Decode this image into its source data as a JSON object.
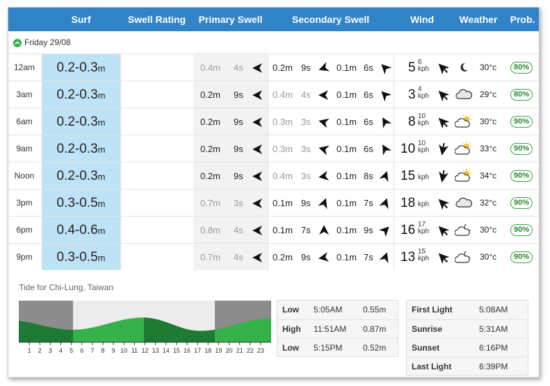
{
  "header": {
    "surf": "Surf",
    "swell_rating": "Swell Rating",
    "primary_swell": "Primary Swell",
    "secondary_swell": "Secondary Swell",
    "wind": "Wind",
    "weather": "Weather",
    "prob": "Prob."
  },
  "day": {
    "label": "Friday 29/08"
  },
  "units": {
    "metre": "m",
    "second": "s",
    "kph": "kph"
  },
  "rows": [
    {
      "time": "12am",
      "surf": "0.2-0.3",
      "pri_h": "0.4",
      "pri_p": "4",
      "pri_dim": true,
      "sec1_h": "0.2",
      "sec1_p": "9",
      "sec1_dim": false,
      "sec2_h": "0.1",
      "sec2_p": "6",
      "sec2_dim": false,
      "wind": "5",
      "gust": "6",
      "temp": "30°c",
      "prob": "80%",
      "weather_icon": "moon-icon"
    },
    {
      "time": "3am",
      "surf": "0.2-0.3",
      "pri_h": "0.2",
      "pri_p": "9",
      "pri_dim": false,
      "sec1_h": "0.4",
      "sec1_p": "4",
      "sec1_dim": true,
      "sec2_h": "0.1",
      "sec2_p": "6",
      "sec2_dim": false,
      "wind": "3",
      "gust": "4",
      "temp": "29°c",
      "prob": "80%",
      "weather_icon": "cloud-icon"
    },
    {
      "time": "6am",
      "surf": "0.2-0.3",
      "pri_h": "0.2",
      "pri_p": "9",
      "pri_dim": false,
      "sec1_h": "0.3",
      "sec1_p": "3",
      "sec1_dim": true,
      "sec2_h": "0.1",
      "sec2_p": "6",
      "sec2_dim": false,
      "wind": "8",
      "gust": "10",
      "temp": "30°c",
      "prob": "90%",
      "weather_icon": "sun-cloud-icon"
    },
    {
      "time": "9am",
      "surf": "0.2-0.3",
      "pri_h": "0.2",
      "pri_p": "9",
      "pri_dim": false,
      "sec1_h": "0.3",
      "sec1_p": "3",
      "sec1_dim": true,
      "sec2_h": "0.1",
      "sec2_p": "6",
      "sec2_dim": false,
      "wind": "10",
      "gust": "10",
      "temp": "33°c",
      "prob": "90%",
      "weather_icon": "sun-cloud-icon"
    },
    {
      "time": "Noon",
      "surf": "0.2-0.3",
      "pri_h": "0.2",
      "pri_p": "9",
      "pri_dim": false,
      "sec1_h": "0.4",
      "sec1_p": "3",
      "sec1_dim": true,
      "sec2_h": "0.1",
      "sec2_p": "8",
      "sec2_dim": false,
      "wind": "15",
      "gust": "",
      "temp": "34°c",
      "prob": "90%",
      "weather_icon": "sun-cloud-icon"
    },
    {
      "time": "3pm",
      "surf": "0.3-0.5",
      "pri_h": "0.7",
      "pri_p": "3",
      "pri_dim": true,
      "sec1_h": "0.1",
      "sec1_p": "9",
      "sec1_dim": false,
      "sec2_h": "0.1",
      "sec2_p": "7",
      "sec2_dim": false,
      "wind": "18",
      "gust": "",
      "temp": "32°c",
      "prob": "90%",
      "weather_icon": "cloud-icon"
    },
    {
      "time": "6pm",
      "surf": "0.4-0.6",
      "pri_h": "0.8",
      "pri_p": "4",
      "pri_dim": true,
      "sec1_h": "0.1",
      "sec1_p": "7",
      "sec1_dim": false,
      "sec2_h": "0.1",
      "sec2_p": "9",
      "sec2_dim": false,
      "wind": "16",
      "gust": "17",
      "temp": "30°c",
      "prob": "90%",
      "weather_icon": "moon-cloud-icon"
    },
    {
      "time": "9pm",
      "surf": "0.3-0.5",
      "pri_h": "0.7",
      "pri_p": "4",
      "pri_dim": true,
      "sec1_h": "0.2",
      "sec1_p": "9",
      "sec1_dim": false,
      "sec2_h": "0.1",
      "sec2_p": "7",
      "sec2_dim": false,
      "wind": "13",
      "gust": "15",
      "temp": "30°c",
      "prob": "90%",
      "weather_icon": "moon-cloud-icon"
    }
  ],
  "tide": {
    "title": "Tide for Chi-Lung, Taiwan",
    "hours": [
      "1",
      "2",
      "3",
      "4",
      "5",
      "6",
      "7",
      "8",
      "9",
      "10",
      "11",
      "12",
      "13",
      "14",
      "15",
      "16",
      "17",
      "18",
      "19",
      "20",
      "21",
      "22",
      "23"
    ],
    "events": [
      {
        "type": "Low",
        "time": "5:05AM",
        "height": "0.55m"
      },
      {
        "type": "High",
        "time": "11:51AM",
        "height": "0.87m"
      },
      {
        "type": "Low",
        "time": "5:15PM",
        "height": "0.52m"
      }
    ]
  },
  "sun": [
    {
      "label": "First Light",
      "time": "5:08AM"
    },
    {
      "label": "Sunrise",
      "time": "5:31AM"
    },
    {
      "label": "Sunset",
      "time": "6:16PM"
    },
    {
      "label": "Last Light",
      "time": "6:39PM"
    }
  ],
  "colors": {
    "header": "#3183c8",
    "surf_band": "#bfe3f6",
    "tide_dark": "#1f7a33",
    "tide_light": "#35b24a",
    "prob_badge": "#3aa241"
  }
}
